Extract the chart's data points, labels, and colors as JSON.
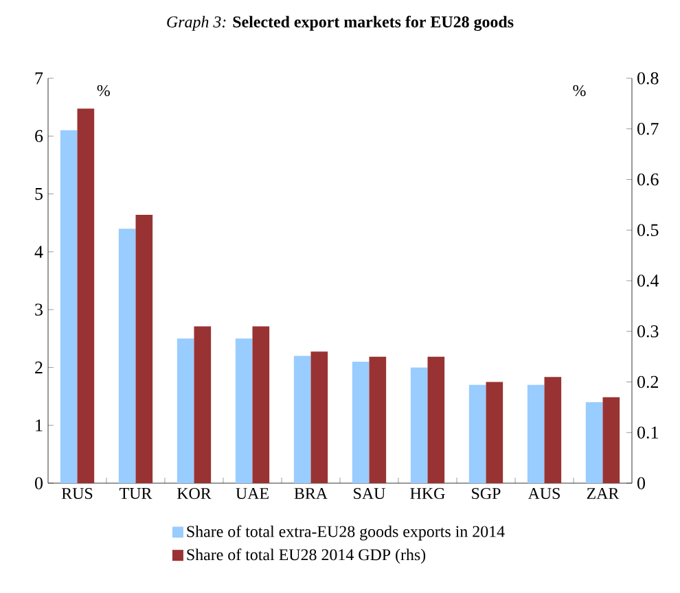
{
  "chart_data": {
    "type": "bar",
    "title": "*Graph 3:* **Selected export markets for EU28 goods**",
    "ylabel": "%",
    "y2label": "%",
    "categories": [
      "RUS",
      "TUR",
      "KOR",
      "UAE",
      "BRA",
      "SAU",
      "HKG",
      "SGP",
      "AUS",
      "ZAR"
    ],
    "series": [
      {
        "name": "Share of total extra-EU28 goods exports in 2014",
        "color": "#99ccff",
        "values": [
          6.1,
          4.4,
          2.5,
          2.5,
          2.2,
          2.1,
          2.0,
          1.7,
          1.7,
          1.4
        ]
      },
      {
        "name": "Share of total EU28 2014 GDP (rhs)",
        "color": "#993333",
        "axis": "y2",
        "values": [
          0.74,
          0.53,
          0.31,
          0.31,
          0.26,
          0.25,
          0.25,
          0.2,
          0.21,
          0.17
        ]
      }
    ],
    "ylim": [
      0,
      7
    ],
    "yticks": [
      0,
      1,
      2,
      3,
      4,
      5,
      6,
      7
    ],
    "y2lim": [
      0,
      0.8
    ],
    "y2ticks": [
      0,
      0.1,
      0.2,
      0.3,
      0.4,
      0.5,
      0.6,
      0.7,
      0.8
    ],
    "legend": "bottom"
  }
}
